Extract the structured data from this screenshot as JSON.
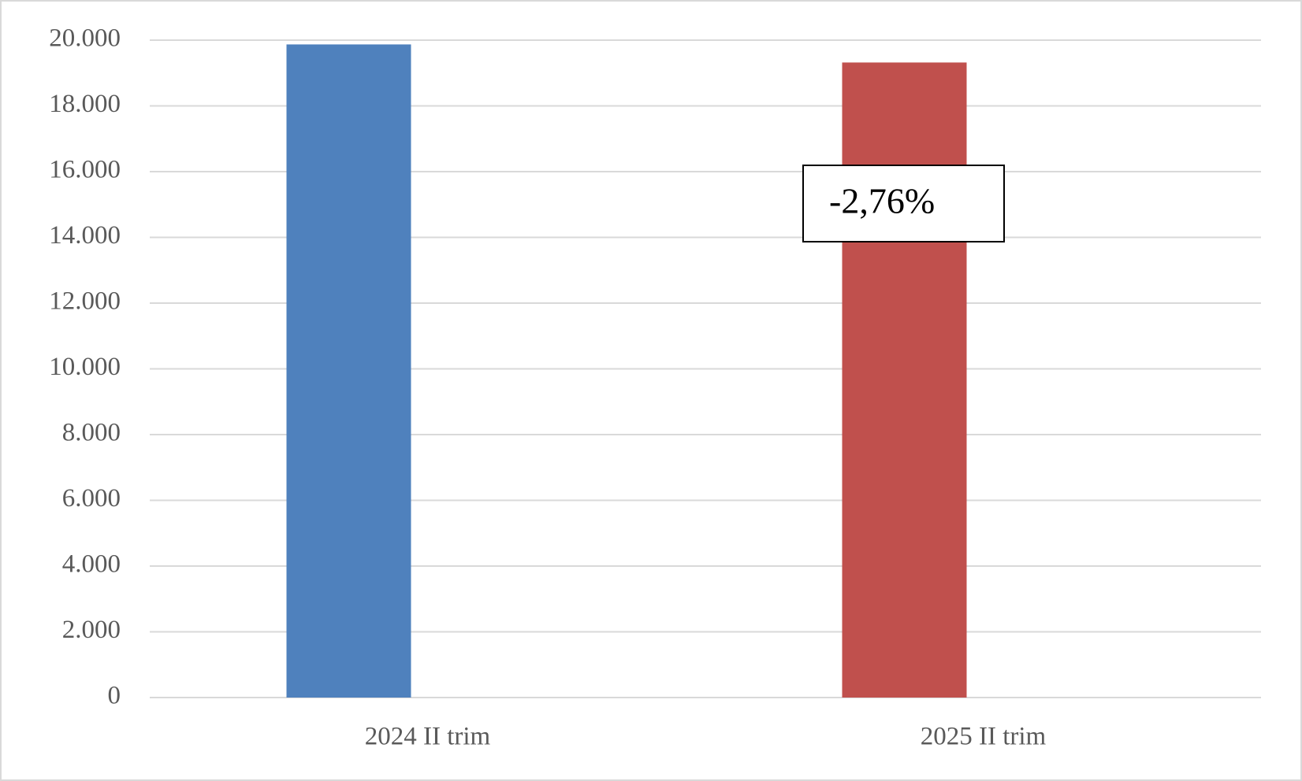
{
  "chart_data": {
    "type": "bar",
    "categories": [
      "2024 II trim",
      "2025 II trim"
    ],
    "values": [
      19870,
      19320
    ],
    "colors": [
      "#4f81bd",
      "#c0504d"
    ],
    "ylim": [
      0,
      20000
    ],
    "yticks": [
      0,
      {
        "value": 2000,
        "label": "2.000"
      },
      {
        "value": 4000,
        "label": "4.000"
      },
      {
        "value": 6000,
        "label": "6.000"
      },
      {
        "value": 8000,
        "label": "8.000"
      },
      {
        "value": 10000,
        "label": "10.000"
      },
      {
        "value": 12000,
        "label": "12.000"
      },
      {
        "value": 14000,
        "label": "14.000"
      },
      {
        "value": 16000,
        "label": "16.000"
      },
      {
        "value": 18000,
        "label": "18.000"
      },
      {
        "value": 20000,
        "label": "20.000"
      }
    ],
    "grid": true,
    "annotation": "-2,76%"
  }
}
